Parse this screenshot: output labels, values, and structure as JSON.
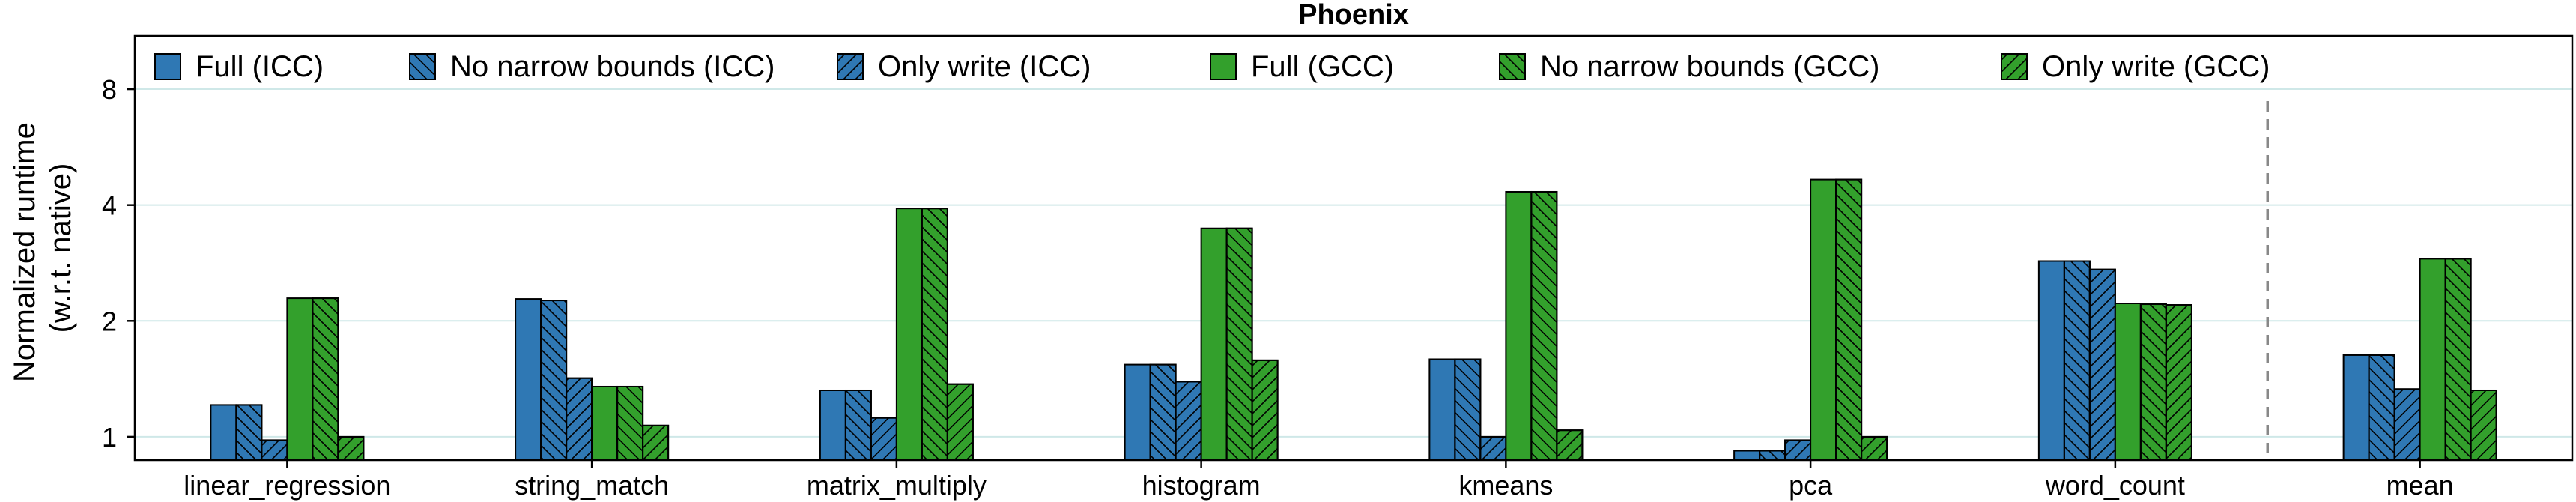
{
  "chart_data": {
    "type": "bar",
    "title": "Phoenix",
    "ylabel": [
      "Normalized runtime",
      "(w.r.t. native)"
    ],
    "xlabel": "",
    "yscale": "log2",
    "ylim": [
      0.87,
      11
    ],
    "yticks": [
      1,
      2,
      4,
      8
    ],
    "grid": "horizontal",
    "legend_position": "top",
    "categories": [
      "linear_regression",
      "string_match",
      "matrix_multiply",
      "histogram",
      "kmeans",
      "pca",
      "word_count",
      "mean"
    ],
    "series": [
      {
        "name": "Full (ICC)",
        "color": "#2f78b4",
        "hatch": "none",
        "values": [
          1.21,
          2.28,
          1.32,
          1.54,
          1.59,
          0.92,
          2.86,
          1.63
        ]
      },
      {
        "name": "No narrow bounds (ICC)",
        "color": "#2f78b4",
        "hatch": "back",
        "values": [
          1.21,
          2.26,
          1.32,
          1.54,
          1.59,
          0.92,
          2.86,
          1.63
        ]
      },
      {
        "name": "Only write (ICC)",
        "color": "#2f78b4",
        "hatch": "forward",
        "values": [
          0.98,
          1.42,
          1.12,
          1.39,
          1.0,
          0.98,
          2.72,
          1.33
        ]
      },
      {
        "name": "Full (GCC)",
        "color": "#33a02c",
        "hatch": "none",
        "values": [
          2.29,
          1.35,
          3.92,
          3.48,
          4.33,
          4.66,
          2.22,
          2.9
        ]
      },
      {
        "name": "No narrow bounds (GCC)",
        "color": "#33a02c",
        "hatch": "back",
        "values": [
          2.29,
          1.35,
          3.92,
          3.48,
          4.33,
          4.66,
          2.21,
          2.9
        ]
      },
      {
        "name": "Only write (GCC)",
        "color": "#33a02c",
        "hatch": "forward",
        "values": [
          1.0,
          1.07,
          1.37,
          1.58,
          1.04,
          1.0,
          2.2,
          1.32
        ]
      }
    ],
    "separator_before": "mean"
  }
}
